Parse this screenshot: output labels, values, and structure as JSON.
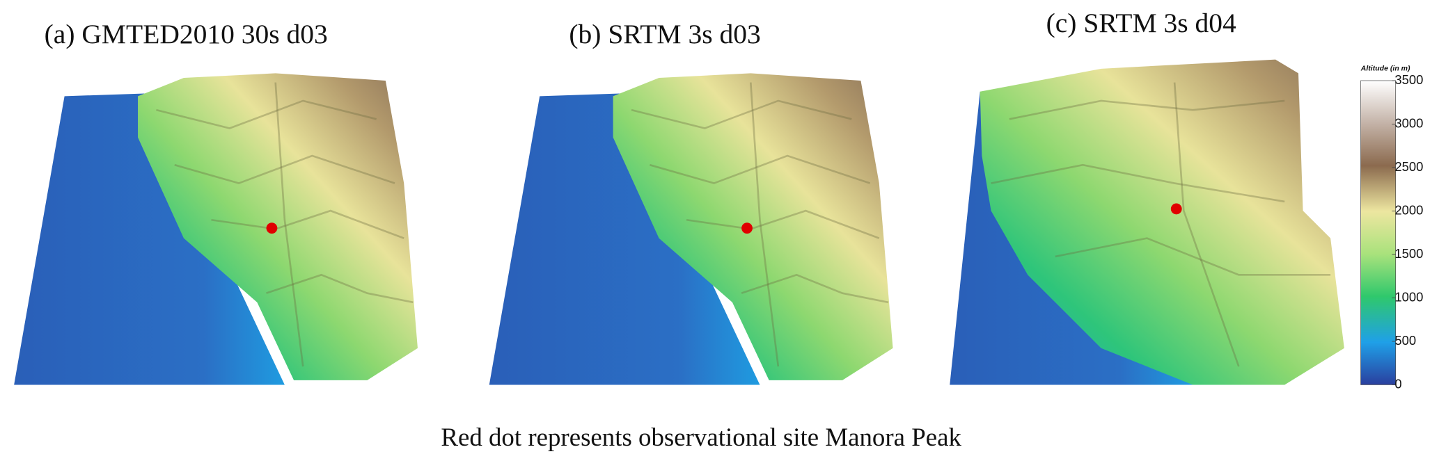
{
  "panels": [
    {
      "title": "(a) GMTED2010 30s d03"
    },
    {
      "title": "(b) SRTM 3s d03"
    },
    {
      "title": "(c) SRTM 3s d04"
    }
  ],
  "colorbar": {
    "title": "Altitude (in m)",
    "lim": [
      0,
      3500
    ],
    "ticks": [
      0,
      500,
      1000,
      1500,
      2000,
      2500,
      3000,
      3500
    ]
  },
  "caption": "Red dot represents observational site Manora Peak"
}
